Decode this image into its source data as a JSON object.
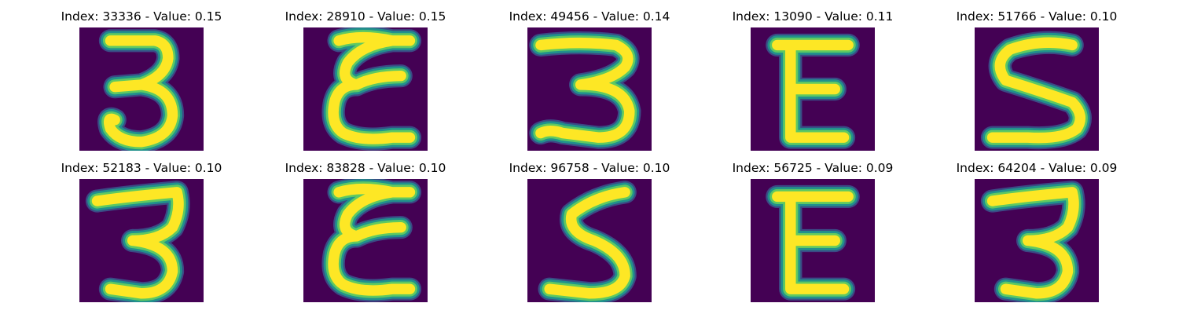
{
  "colors": {
    "background": "#440154",
    "stroke_core": "#fde725",
    "stroke_mid": "#5ec962",
    "stroke_edge": "#21918c",
    "stroke_fade": "#3b528b"
  },
  "panels": [
    {
      "title": "Index: 33336 - Value: 0.15",
      "glyph": "3"
    },
    {
      "title": "Index: 28910 - Value: 0.15",
      "glyph": "E-curly"
    },
    {
      "title": "Index: 49456 - Value: 0.14",
      "glyph": "3-wide"
    },
    {
      "title": "Index: 13090 - Value: 0.11",
      "glyph": "E"
    },
    {
      "title": "Index: 51766 - Value: 0.10",
      "glyph": "S"
    },
    {
      "title": "Index: 52183 - Value: 0.10",
      "glyph": "3-flat"
    },
    {
      "title": "Index: 83828 - Value: 0.10",
      "glyph": "E-curly"
    },
    {
      "title": "Index: 96758 - Value: 0.10",
      "glyph": "S"
    },
    {
      "title": "Index: 56725 - Value: 0.09",
      "glyph": "E"
    },
    {
      "title": "Index: 64204 - Value: 0.09",
      "glyph": "3-flat"
    }
  ]
}
